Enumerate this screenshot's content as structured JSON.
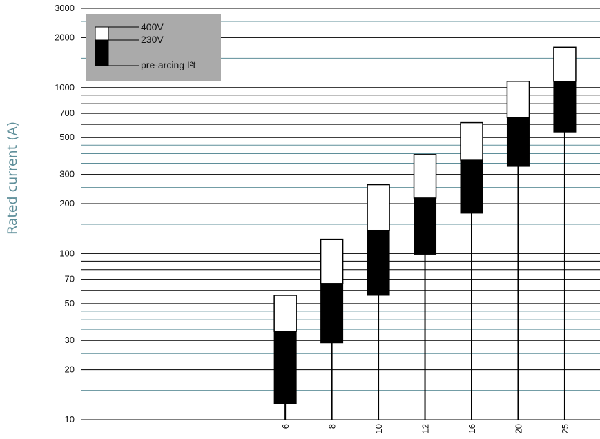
{
  "chart_data": {
    "type": "bar",
    "ylabel": "Rated current (A)",
    "xlabel": "",
    "yscale": "log",
    "ylim": [
      10,
      3000
    ],
    "grid": true,
    "legend_position": "top-left",
    "y_ticks": [
      {
        "value": 3000,
        "label": "3000"
      },
      {
        "value": 2000,
        "label": "2000"
      },
      {
        "value": 1000,
        "label": "1000"
      },
      {
        "value": 700,
        "label": "700"
      },
      {
        "value": 500,
        "label": "500"
      },
      {
        "value": 300,
        "label": "300"
      },
      {
        "value": 200,
        "label": "200"
      },
      {
        "value": 100,
        "label": "100"
      },
      {
        "value": 70,
        "label": "70"
      },
      {
        "value": 50,
        "label": "50"
      },
      {
        "value": 30,
        "label": "30"
      },
      {
        "value": 20,
        "label": "20"
      },
      {
        "value": 10,
        "label": "10"
      }
    ],
    "grid_black": [
      3000,
      2000,
      1000,
      900,
      800,
      700,
      600,
      500,
      300,
      200,
      100,
      90,
      80,
      70,
      60,
      50,
      30,
      20,
      10
    ],
    "grid_teal": [
      2500,
      1500,
      450,
      400,
      350,
      250,
      150,
      45,
      40,
      35,
      25,
      15
    ],
    "categories": [
      "6",
      "8",
      "10",
      "12",
      "16",
      "20",
      "25"
    ],
    "pre_arcing_min": [
      12.5,
      29,
      56,
      99,
      175,
      335,
      540
    ],
    "at_230V": [
      34,
      66,
      138,
      216,
      365,
      660,
      1090
    ],
    "at_400V": [
      56,
      122,
      260,
      395,
      615,
      1090,
      1750
    ],
    "legend": {
      "items": [
        "400V",
        "230V",
        "pre-arcing I²t"
      ]
    }
  },
  "colors": {
    "background": "#ffffff",
    "grid_black": "#000000",
    "grid_teal": "#5f8f9a",
    "bar_white": "#ffffff",
    "bar_black": "#000000",
    "legend_box": "#aaaaaa",
    "axis_label": "#5f8f9a"
  }
}
